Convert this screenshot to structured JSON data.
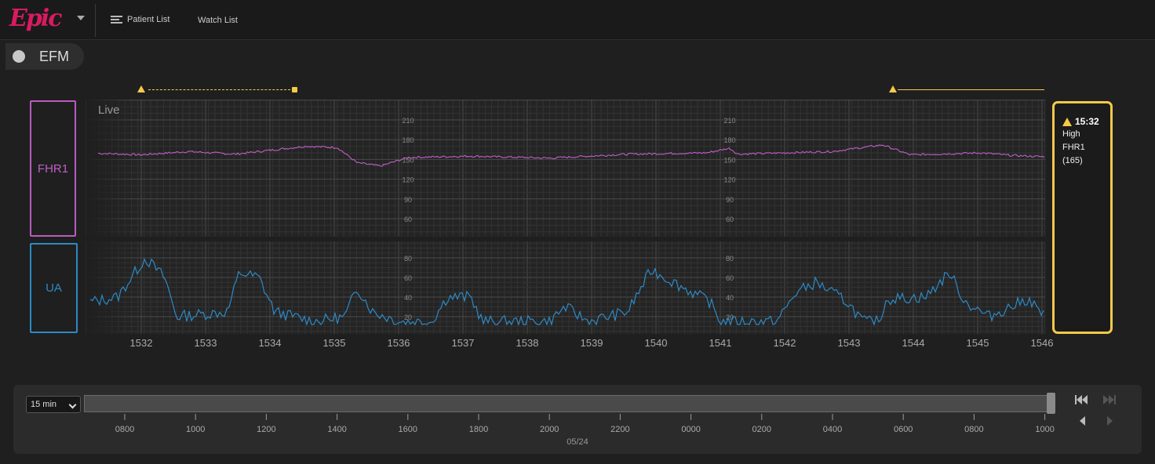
{
  "topbar": {
    "logo_text": "Epic",
    "patient_list_label": "Patient List",
    "watch_list_label": "Watch List"
  },
  "efm": {
    "label": "EFM"
  },
  "strip": {
    "live_label": "Live",
    "fhr_label": "FHR1",
    "ua_label": "UA",
    "fhr_color": "#c05fc7",
    "ua_color": "#2d8ac6",
    "alert_color": "#f7c948",
    "fhr_scale": [
      "210",
      "180",
      "150",
      "120",
      "90",
      "60"
    ],
    "ua_scale": [
      "80",
      "60",
      "40",
      "20"
    ],
    "time_ticks": [
      "1532",
      "1533",
      "1534",
      "1535",
      "1536",
      "1537",
      "1538",
      "1539",
      "1540",
      "1541",
      "1542",
      "1543",
      "1544",
      "1545",
      "1546"
    ]
  },
  "alert": {
    "time": "15:32",
    "line1": "High",
    "line2": "FHR1",
    "line3": "(165)"
  },
  "timeline": {
    "duration": "15 min",
    "ticks": [
      "0800",
      "1000",
      "1200",
      "1400",
      "1600",
      "1800",
      "2000",
      "2200",
      "0000",
      "0200",
      "0400",
      "0600",
      "0800",
      "1000"
    ],
    "date": "05/24"
  },
  "icons": {
    "patient_list": "list-icon",
    "watch_list": "grid-icon",
    "alert": "warning-icon",
    "nav_first": "skip-first-icon",
    "nav_last": "skip-last-icon",
    "nav_prev": "step-back-icon",
    "nav_next": "step-forward-icon"
  }
}
